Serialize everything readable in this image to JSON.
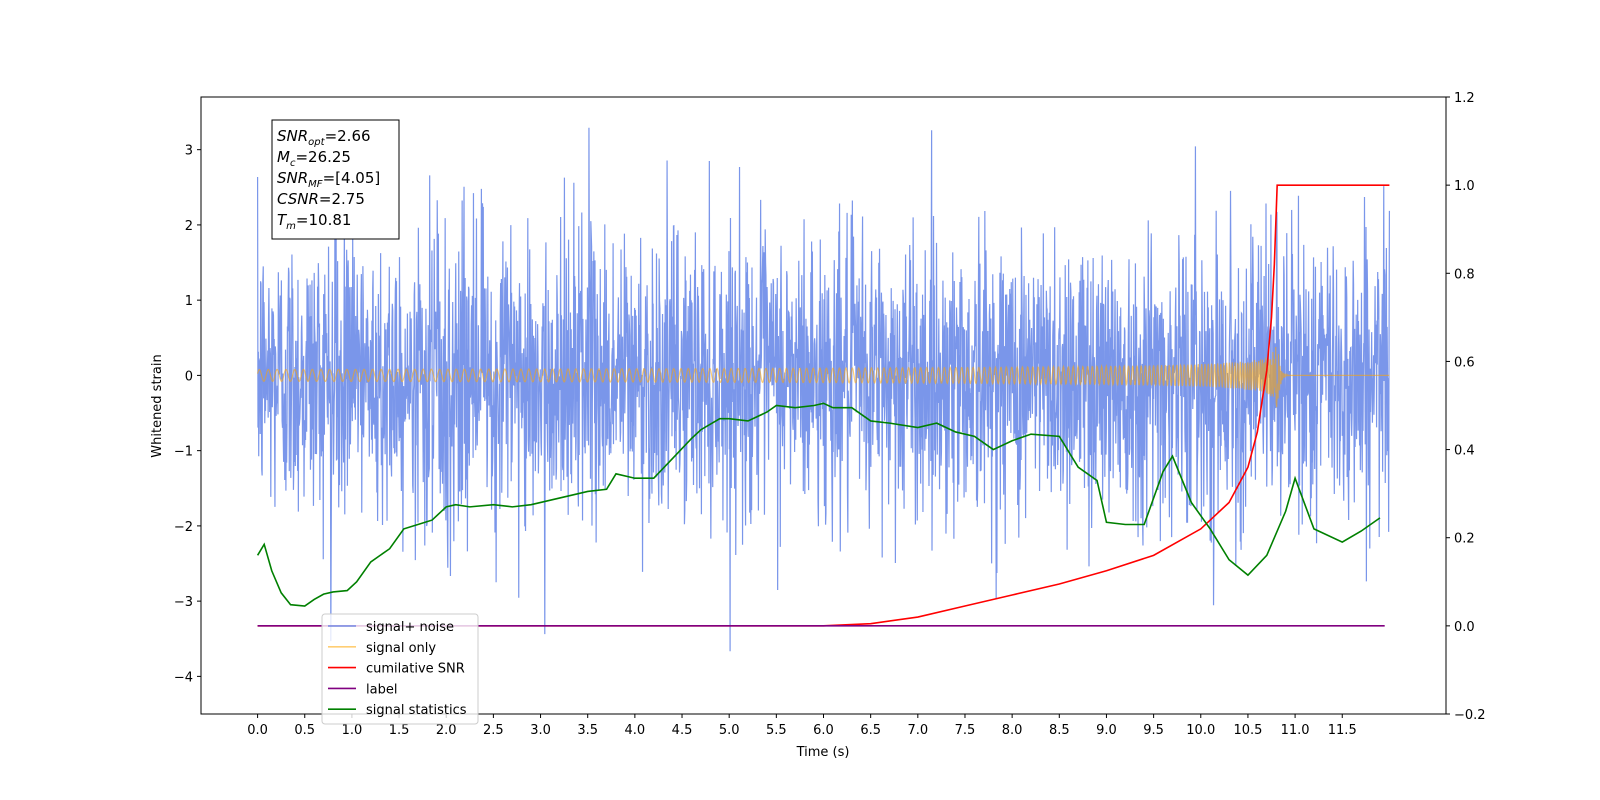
{
  "chart_data": {
    "type": "line",
    "xlabel": "Time (s)",
    "ylabel": "Whitened strain",
    "xlim": [
      -0.6,
      12.6
    ],
    "ylim_left": [
      -4.5,
      3.7
    ],
    "ylim_right": [
      -0.2,
      1.2
    ],
    "x_ticks": [
      "0.0",
      "0.5",
      "1.0",
      "1.5",
      "2.0",
      "2.5",
      "3.0",
      "3.5",
      "4.0",
      "4.5",
      "5.0",
      "5.5",
      "6.0",
      "6.5",
      "7.0",
      "7.5",
      "8.0",
      "8.5",
      "9.0",
      "9.5",
      "10.0",
      "10.5",
      "11.0",
      "11.5"
    ],
    "y_ticks_left": [
      "3",
      "2",
      "1",
      "0",
      "−1",
      "−2",
      "−3",
      "−4"
    ],
    "y_ticks_right": [
      "1.2",
      "1.0",
      "0.8",
      "0.6",
      "0.4",
      "0.2",
      "0.0",
      "−0.2"
    ],
    "grid": false,
    "legend_position": "lower-left",
    "annotation_lines": [
      {
        "base": "SNR",
        "sub": "opt",
        "value": "=2.66"
      },
      {
        "base": "M",
        "sub": "c",
        "value": "=26.25"
      },
      {
        "base": "SNR",
        "sub": "MF",
        "value": "=[4.05]"
      },
      {
        "base": "CSNR",
        "sub": "",
        "value": "=2.75"
      },
      {
        "base": "T",
        "sub": "m",
        "value": "=10.81"
      }
    ],
    "series": [
      {
        "name": "signal+ noise",
        "color": "#4169E1",
        "axis": "left",
        "kind": "noise",
        "x_range": [
          0.0,
          12.0
        ],
        "center": 0.0,
        "upper_envelope": 3.3,
        "lower_envelope": -3.8
      },
      {
        "name": "signal only",
        "color": "#FFA500",
        "axis": "left",
        "kind": "chirp",
        "x_range": [
          0.0,
          12.0
        ],
        "merger_time": 10.81,
        "peak_amplitude": 0.57
      },
      {
        "name": "cumilative SNR",
        "color": "#FF0000",
        "axis": "right",
        "x": [
          0.0,
          5.0,
          6.0,
          6.5,
          7.0,
          7.5,
          8.0,
          8.5,
          9.0,
          9.5,
          10.0,
          10.3,
          10.5,
          10.6,
          10.7,
          10.75,
          10.78,
          10.81,
          10.82,
          11.0,
          12.0
        ],
        "y": [
          0.0,
          0.0,
          0.0,
          0.005,
          0.02,
          0.045,
          0.07,
          0.095,
          0.125,
          0.16,
          0.22,
          0.28,
          0.36,
          0.44,
          0.58,
          0.7,
          0.82,
          1.0,
          1.0,
          1.0,
          1.0
        ]
      },
      {
        "name": "label",
        "color": "#800080",
        "axis": "right",
        "x": [
          0.0,
          11.95
        ],
        "y": [
          0.0,
          0.0
        ]
      },
      {
        "name": "signal statistics",
        "color": "#008000",
        "axis": "right",
        "x": [
          0.0,
          0.07,
          0.15,
          0.25,
          0.35,
          0.5,
          0.6,
          0.7,
          0.8,
          0.95,
          1.05,
          1.2,
          1.4,
          1.55,
          1.7,
          1.85,
          2.0,
          2.1,
          2.25,
          2.5,
          2.7,
          2.9,
          3.2,
          3.5,
          3.7,
          3.8,
          4.0,
          4.2,
          4.4,
          4.6,
          4.7,
          4.9,
          5.0,
          5.2,
          5.4,
          5.5,
          5.7,
          5.9,
          6.0,
          6.1,
          6.3,
          6.5,
          6.7,
          7.0,
          7.2,
          7.4,
          7.6,
          7.8,
          8.0,
          8.2,
          8.5,
          8.7,
          8.9,
          9.0,
          9.2,
          9.4,
          9.6,
          9.7,
          9.9,
          10.1,
          10.3,
          10.5,
          10.7,
          10.9,
          11.0,
          11.2,
          11.5,
          11.7,
          11.9
        ],
        "y": [
          0.16,
          0.185,
          0.125,
          0.075,
          0.048,
          0.045,
          0.06,
          0.072,
          0.077,
          0.08,
          0.1,
          0.145,
          0.175,
          0.22,
          0.23,
          0.24,
          0.27,
          0.275,
          0.27,
          0.275,
          0.27,
          0.275,
          0.29,
          0.305,
          0.31,
          0.345,
          0.335,
          0.335,
          0.38,
          0.425,
          0.445,
          0.47,
          0.47,
          0.465,
          0.485,
          0.5,
          0.495,
          0.5,
          0.505,
          0.495,
          0.495,
          0.465,
          0.46,
          0.45,
          0.46,
          0.44,
          0.43,
          0.4,
          0.42,
          0.435,
          0.43,
          0.36,
          0.33,
          0.235,
          0.23,
          0.23,
          0.35,
          0.385,
          0.28,
          0.22,
          0.15,
          0.115,
          0.16,
          0.26,
          0.335,
          0.22,
          0.19,
          0.215,
          0.245
        ]
      }
    ]
  }
}
